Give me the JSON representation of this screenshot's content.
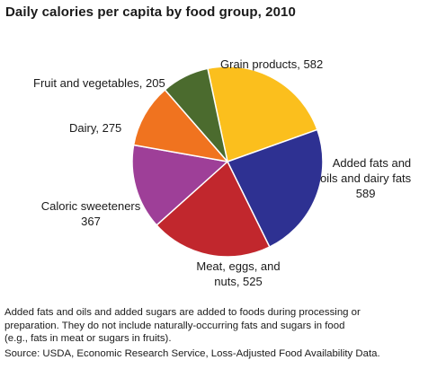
{
  "title": "Daily calories per capita by food group, 2010",
  "chart_data": {
    "type": "pie",
    "title": "Daily calories per capita by food group, 2010",
    "slices": [
      {
        "name": "Grain products",
        "value": 582,
        "color": "#fbbf1d",
        "label_lines": [
          "Grain products, 582"
        ]
      },
      {
        "name": "Added fats and oils and dairy fats",
        "value": 589,
        "color": "#2e3192",
        "label_lines": [
          "Added fats and",
          "oils and dairy fats",
          "589"
        ]
      },
      {
        "name": "Meat, eggs, and nuts",
        "value": 525,
        "color": "#c1272d",
        "label_lines": [
          "Meat, eggs, and",
          "nuts, 525"
        ]
      },
      {
        "name": "Caloric sweeteners",
        "value": 367,
        "color": "#9e3f98",
        "label_lines": [
          "Caloric sweeteners",
          "367"
        ]
      },
      {
        "name": "Dairy",
        "value": 275,
        "color": "#f0731f",
        "label_lines": [
          "Dairy, 275"
        ]
      },
      {
        "name": "Fruit and vegetables",
        "value": 205,
        "color": "#4b6b2e",
        "label_lines": [
          "Fruit and vegetables, 205"
        ]
      }
    ]
  },
  "footnote_lines": [
    "Added fats and oils and added sugars are added to foods during processing or",
    "preparation. They do not include naturally-occurring fats and sugars in food",
    "(e.g., fats in meat or sugars in fruits)."
  ],
  "source": "Source: USDA, Economic Research Service, Loss-Adjusted Food Availability Data."
}
